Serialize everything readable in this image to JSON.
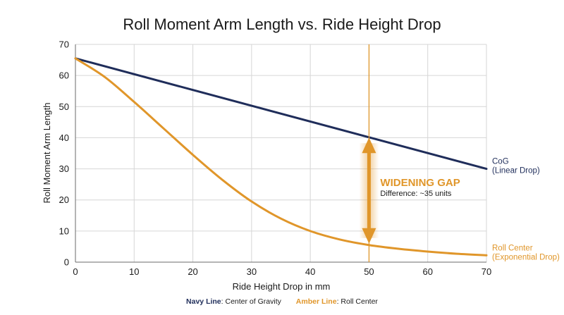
{
  "chart_data": {
    "type": "line",
    "title": "Roll Moment Arm Length vs. Ride Height Drop",
    "xlabel": "Ride Height Drop in mm",
    "ylabel": "Roll Moment Arm Length",
    "xlim": [
      0,
      70
    ],
    "ylim": [
      0,
      70
    ],
    "x_ticks": [
      "0",
      "10",
      "20",
      "30",
      "40",
      "50",
      "60",
      "70"
    ],
    "y_ticks": [
      "0",
      "10",
      "20",
      "30",
      "40",
      "50",
      "60",
      "70"
    ],
    "grid": true,
    "series": [
      {
        "name": "CoG",
        "note": "(Linear Drop)",
        "color": "#1f2d5a",
        "x": [
          0,
          70
        ],
        "y": [
          65.5,
          30
        ]
      },
      {
        "name": "Roll Center",
        "note": "(Exponential Drop)",
        "color": "#e0962a",
        "x": [
          0,
          5,
          10,
          15,
          20,
          25,
          30,
          35,
          40,
          45,
          50,
          55,
          60,
          65,
          70
        ],
        "y": [
          65.5,
          59.5,
          51.5,
          43,
          34.5,
          26.5,
          19.5,
          14,
          10,
          7.3,
          5.5,
          4.3,
          3.4,
          2.7,
          2.2
        ]
      }
    ],
    "marker": {
      "x": 50,
      "color": "#e0962a",
      "gap_from": 5.5,
      "gap_to": 40.5
    },
    "annotation": {
      "title": "WIDENING GAP",
      "text": "Difference: ~35 units"
    },
    "legend": {
      "position": "bottom-center",
      "items": [
        {
          "key": "Navy Line",
          "text": "Center of Gravity",
          "color": "#1f2d5a"
        },
        {
          "key": "Amber Line",
          "text": "Roll Center",
          "color": "#e0962a"
        }
      ]
    }
  }
}
